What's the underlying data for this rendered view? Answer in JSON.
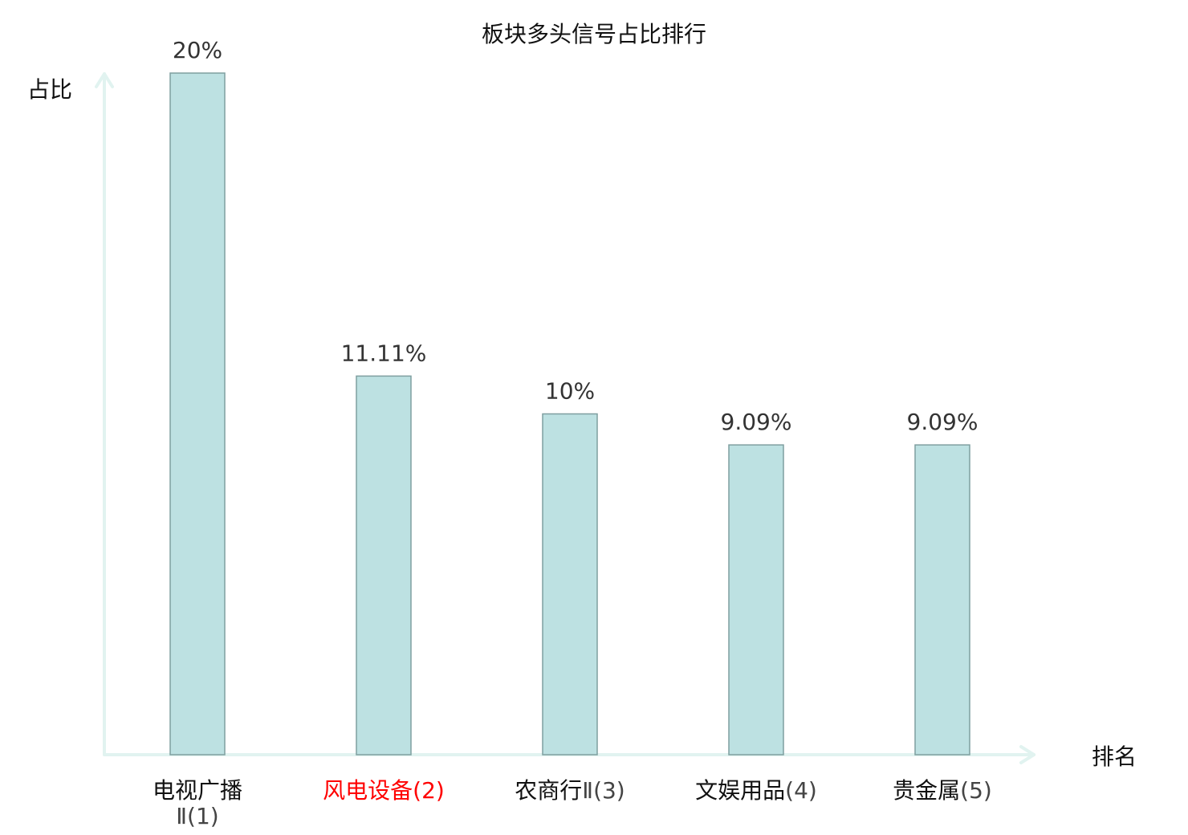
{
  "chart_data": {
    "type": "bar",
    "title": "板块多头信号占比排行",
    "xlabel": "排名",
    "ylabel": "占比",
    "ylim": [
      0,
      20
    ],
    "grid": false,
    "legend": "none",
    "categories": [
      "电视广播Ⅱ(1)",
      "风电设备(2)",
      "农商行Ⅱ(3)",
      "文娱用品(4)",
      "贵金属(5)"
    ],
    "category_parts": [
      {
        "name": "电视广播",
        "rank": "Ⅱ(1)",
        "wrap": true,
        "highlight": false
      },
      {
        "name": "风电设备",
        "rank": "(2)",
        "wrap": false,
        "highlight": true
      },
      {
        "name": "农商行",
        "rank": "Ⅱ(3)",
        "wrap": false,
        "highlight": false
      },
      {
        "name": "文娱用品",
        "rank": "(4)",
        "wrap": false,
        "highlight": false
      },
      {
        "name": "贵金属",
        "rank": "(5)",
        "wrap": false,
        "highlight": false
      }
    ],
    "values": [
      20,
      11.11,
      10,
      9.09,
      9.09
    ],
    "value_labels": [
      "20%",
      "11.11%",
      "10%",
      "9.09%",
      "9.09%"
    ]
  },
  "colors": {
    "bar_fill": "#bde1e2",
    "bar_stroke": "#7f9fa0",
    "axis": "#e1f3f0",
    "highlight_text": "#ff0000",
    "normal_text": "#111111"
  }
}
